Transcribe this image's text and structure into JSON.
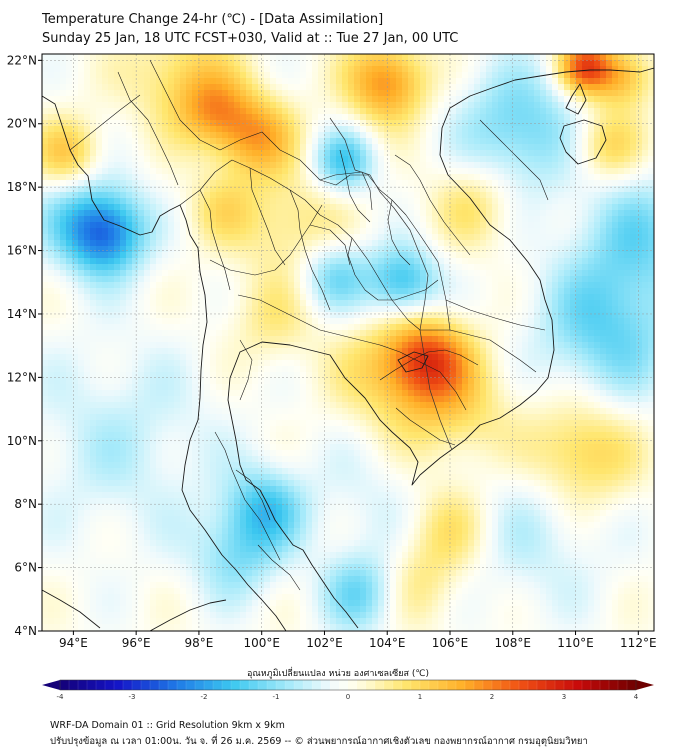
{
  "title": {
    "line1": "Temperature Change 24-hr (℃) - [Data Assimilation]",
    "line2": "Sunday 25 Jan, 18 UTC FCST+030, Valid at :: Tue 27 Jan, 00 UTC"
  },
  "map": {
    "lon_range": [
      93,
      112.5
    ],
    "lat_range": [
      4,
      22.2
    ],
    "x_ticks": [
      "94°E",
      "96°E",
      "98°E",
      "100°E",
      "102°E",
      "104°E",
      "106°E",
      "108°E",
      "110°E",
      "112°E"
    ],
    "x_tick_values": [
      94,
      96,
      98,
      100,
      102,
      104,
      106,
      108,
      110,
      112
    ],
    "y_ticks": [
      "22°N",
      "20°N",
      "18°N",
      "16°N",
      "14°N",
      "12°N",
      "10°N",
      "8°N",
      "6°N",
      "4°N"
    ],
    "y_tick_values": [
      22,
      20,
      18,
      16,
      14,
      12,
      10,
      8,
      6,
      4
    ],
    "field_anomalies": [
      {
        "lon": 95.0,
        "lat": 16.5,
        "value": -2.2,
        "spread": 0.9
      },
      {
        "lon": 94.2,
        "lat": 17.3,
        "value": -0.8,
        "spread": 1.2
      },
      {
        "lon": 100.1,
        "lat": 7.9,
        "value": -1.4,
        "spread": 0.9
      },
      {
        "lon": 99.2,
        "lat": 6.4,
        "value": -1.0,
        "spread": 1.0
      },
      {
        "lon": 103.2,
        "lat": 5.2,
        "value": -1.2,
        "spread": 0.9
      },
      {
        "lon": 104.5,
        "lat": 15.0,
        "value": -1.7,
        "spread": 0.8
      },
      {
        "lon": 102.3,
        "lat": 15.2,
        "value": -1.2,
        "spread": 0.8
      },
      {
        "lon": 102.6,
        "lat": 18.8,
        "value": -1.5,
        "spread": 0.7
      },
      {
        "lon": 108.2,
        "lat": 19.8,
        "value": -1.3,
        "spread": 1.4
      },
      {
        "lon": 111.0,
        "lat": 13.5,
        "value": -1.3,
        "spread": 1.6
      },
      {
        "lon": 112.0,
        "lat": 16.5,
        "value": -1.0,
        "spread": 1.4
      },
      {
        "lon": 95.5,
        "lat": 10.0,
        "value": -0.6,
        "spread": 2.2
      },
      {
        "lon": 108.6,
        "lat": 7.2,
        "value": -0.6,
        "spread": 1.8
      },
      {
        "lon": 103.8,
        "lat": 8.2,
        "value": -0.4,
        "spread": 1.6
      },
      {
        "lon": 99.8,
        "lat": 19.6,
        "value": 1.6,
        "spread": 0.9
      },
      {
        "lon": 98.5,
        "lat": 20.4,
        "value": 1.2,
        "spread": 0.8
      },
      {
        "lon": 104.0,
        "lat": 21.3,
        "value": 1.9,
        "spread": 0.9
      },
      {
        "lon": 110.3,
        "lat": 21.8,
        "value": 2.3,
        "spread": 0.6
      },
      {
        "lon": 111.5,
        "lat": 21.5,
        "value": 1.4,
        "spread": 0.7
      },
      {
        "lon": 105.3,
        "lat": 12.6,
        "value": 1.9,
        "spread": 0.9
      },
      {
        "lon": 106.0,
        "lat": 11.0,
        "value": 1.0,
        "spread": 1.4
      },
      {
        "lon": 104.0,
        "lat": 12.2,
        "value": 0.9,
        "spread": 1.2
      },
      {
        "lon": 93.8,
        "lat": 19.0,
        "value": 1.3,
        "spread": 0.8
      },
      {
        "lon": 110.2,
        "lat": 9.6,
        "value": 1.3,
        "spread": 1.2
      },
      {
        "lon": 106.0,
        "lat": 7.3,
        "value": 0.9,
        "spread": 1.0
      },
      {
        "lon": 111.0,
        "lat": 19.3,
        "value": 1.1,
        "spread": 0.8
      },
      {
        "lon": 97.5,
        "lat": 21.5,
        "value": 1.0,
        "spread": 1.2
      },
      {
        "lon": 101.0,
        "lat": 16.8,
        "value": 0.8,
        "spread": 1.2
      },
      {
        "lon": 98.7,
        "lat": 17.3,
        "value": 0.7,
        "spread": 0.8
      },
      {
        "lon": 106.8,
        "lat": 17.5,
        "value": 0.8,
        "spread": 1.0
      },
      {
        "lon": 100.3,
        "lat": 13.8,
        "value": 0.6,
        "spread": 1.0
      },
      {
        "lon": 105.0,
        "lat": 5.5,
        "value": 0.7,
        "spread": 1.0
      }
    ]
  },
  "colorbar": {
    "label": "อุณหภูมิเปลี่ยนแปลง หน่วย องศาเซลเซียส (℃)",
    "range": [
      -4,
      4
    ],
    "ticks": [
      "-4",
      "-3",
      "-2",
      "-1",
      "0",
      "1",
      "2",
      "3",
      "4"
    ],
    "tick_values": [
      -4,
      -3,
      -2,
      -1,
      0,
      1,
      2,
      3,
      4
    ]
  },
  "footer": {
    "line1": "WRF-DA Domain 01 :: Grid Resolution 9km x 9km",
    "line2": "ปรับปรุงข้อมูล ณ เวลา 01:00น. วัน จ. ที่ 26 ม.ค. 2569 -- © ส่วนพยากรณ์อากาศเชิงตัวเลข กองพยากรณ์อากาศ กรมอุตุนิยมวิทยา"
  }
}
